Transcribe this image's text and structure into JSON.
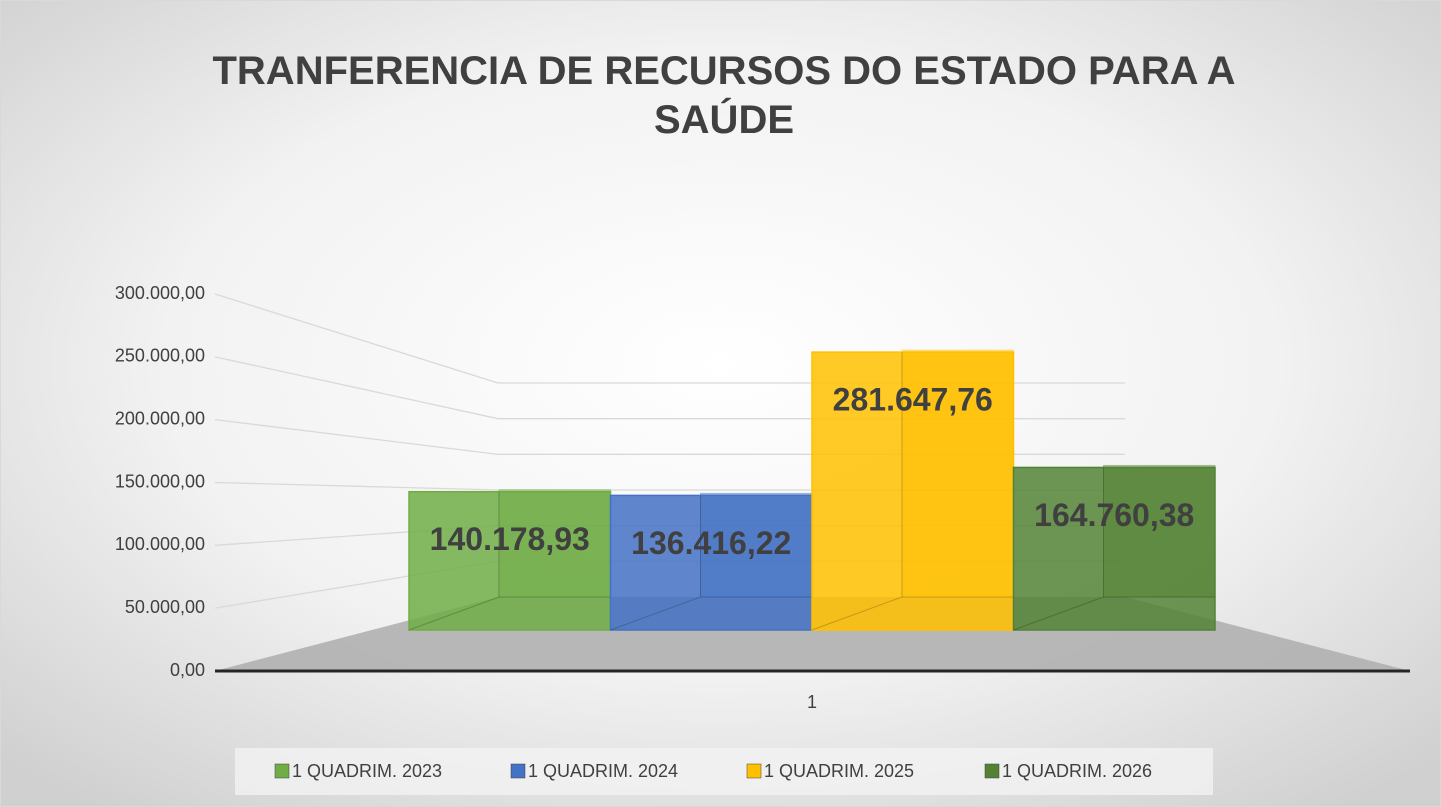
{
  "chart_data": {
    "type": "bar3d",
    "title": "TRANFERENCIA DE RECURSOS DO ESTADO PARA A SAÚDE",
    "categories": [
      "1"
    ],
    "series": [
      {
        "name": "1 QUADRIM. 2023",
        "color": "#70ad47",
        "values": [
          140178.93
        ],
        "value_labels": [
          "140.178,93"
        ]
      },
      {
        "name": "1 QUADRIM. 2024",
        "color": "#4472c4",
        "values": [
          136416.22
        ],
        "value_labels": [
          "136.416,22"
        ]
      },
      {
        "name": "1 QUADRIM. 2025",
        "color": "#ffc000",
        "values": [
          281647.76
        ],
        "value_labels": [
          "281.647,76"
        ]
      },
      {
        "name": "1 QUADRIM. 2026",
        "color": "#548235",
        "values": [
          164760.38
        ],
        "value_labels": [
          "164.760,38"
        ]
      }
    ],
    "ylim": [
      0,
      300000
    ],
    "yticks": [
      {
        "value": 0,
        "label": "0,00"
      },
      {
        "value": 50000,
        "label": "50.000,00"
      },
      {
        "value": 100000,
        "label": "100.000,00"
      },
      {
        "value": 150000,
        "label": "150.000,00"
      },
      {
        "value": 200000,
        "label": "200.000,00"
      },
      {
        "value": 250000,
        "label": "250.000,00"
      },
      {
        "value": 300000,
        "label": "300.000,00"
      }
    ],
    "grid": true,
    "legend": "bottom"
  }
}
